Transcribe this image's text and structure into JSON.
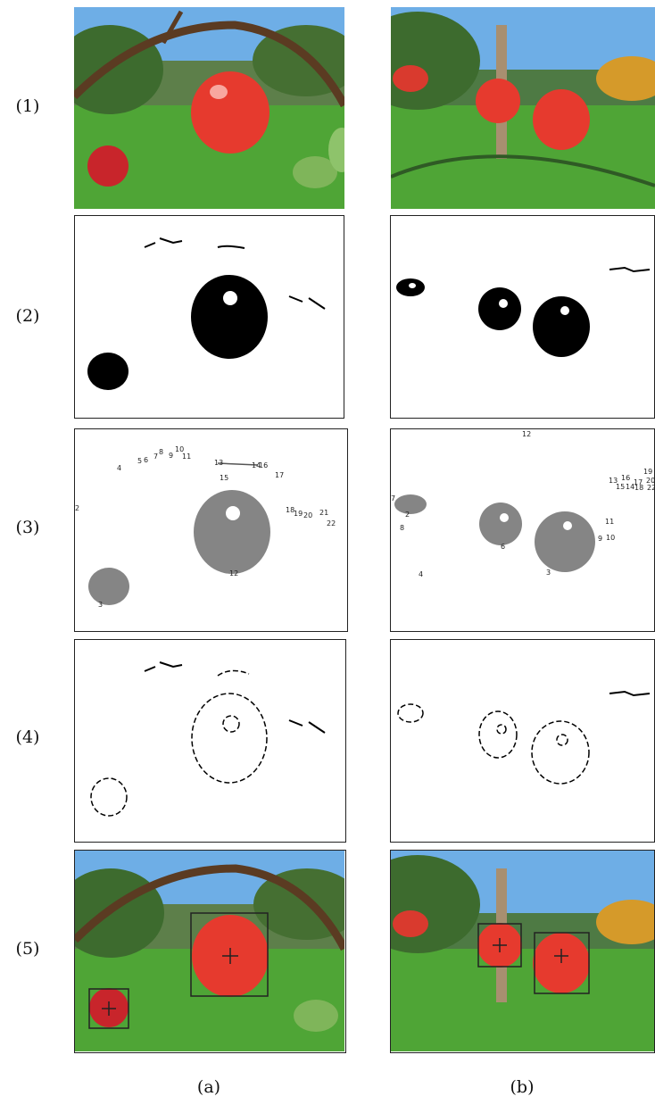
{
  "rows": [
    "(1)",
    "(2)",
    "(3)",
    "(4)",
    "(5)"
  ],
  "columns": [
    "(a)",
    "(b)"
  ],
  "panel_a_labels": [
    "4",
    "5",
    "6",
    "7",
    "8",
    "9",
    "10",
    "11",
    "13",
    "14",
    "15",
    "16",
    "17",
    "12",
    "18",
    "19",
    "20",
    "21",
    "22",
    "3",
    "2"
  ],
  "panel_b_labels": [
    "7",
    "2",
    "8",
    "4",
    "6",
    "3",
    "9",
    "10",
    "11",
    "12",
    "13",
    "16",
    "17",
    "15",
    "14",
    "18",
    "19",
    "20",
    "22"
  ],
  "colors": {
    "apple": "#e63a2e",
    "grass": "#4fa536",
    "sky": "#6eaee6",
    "branch": "#5b3b22",
    "blob": "#858585"
  }
}
